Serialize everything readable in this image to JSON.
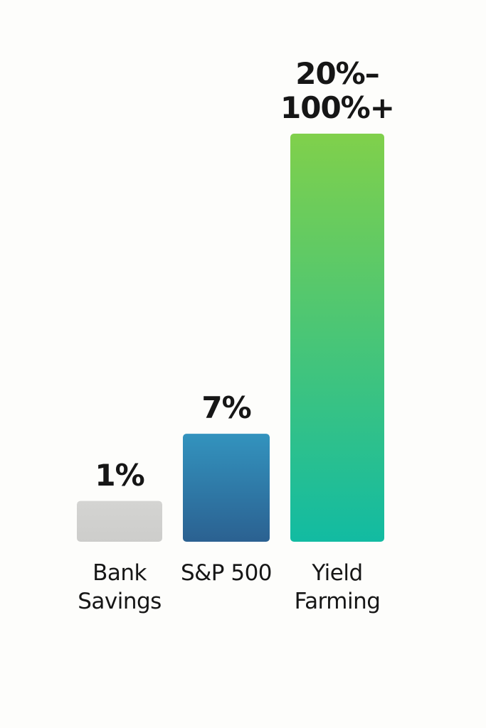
{
  "chart_data": {
    "type": "bar",
    "scale": "sqrt",
    "categories": [
      "Bank Savings",
      "S&P 500",
      "Yield Farming"
    ],
    "values": [
      1,
      7,
      [
        20,
        100
      ]
    ],
    "value_labels": [
      "1%",
      "7%",
      "20%–100%+"
    ],
    "colors": [
      [
        "#d4d4d2",
        "#cdcdcb"
      ],
      [
        "#3393be",
        "#2b6191"
      ],
      [
        "#80d04b",
        "#12bba2"
      ]
    ]
  }
}
